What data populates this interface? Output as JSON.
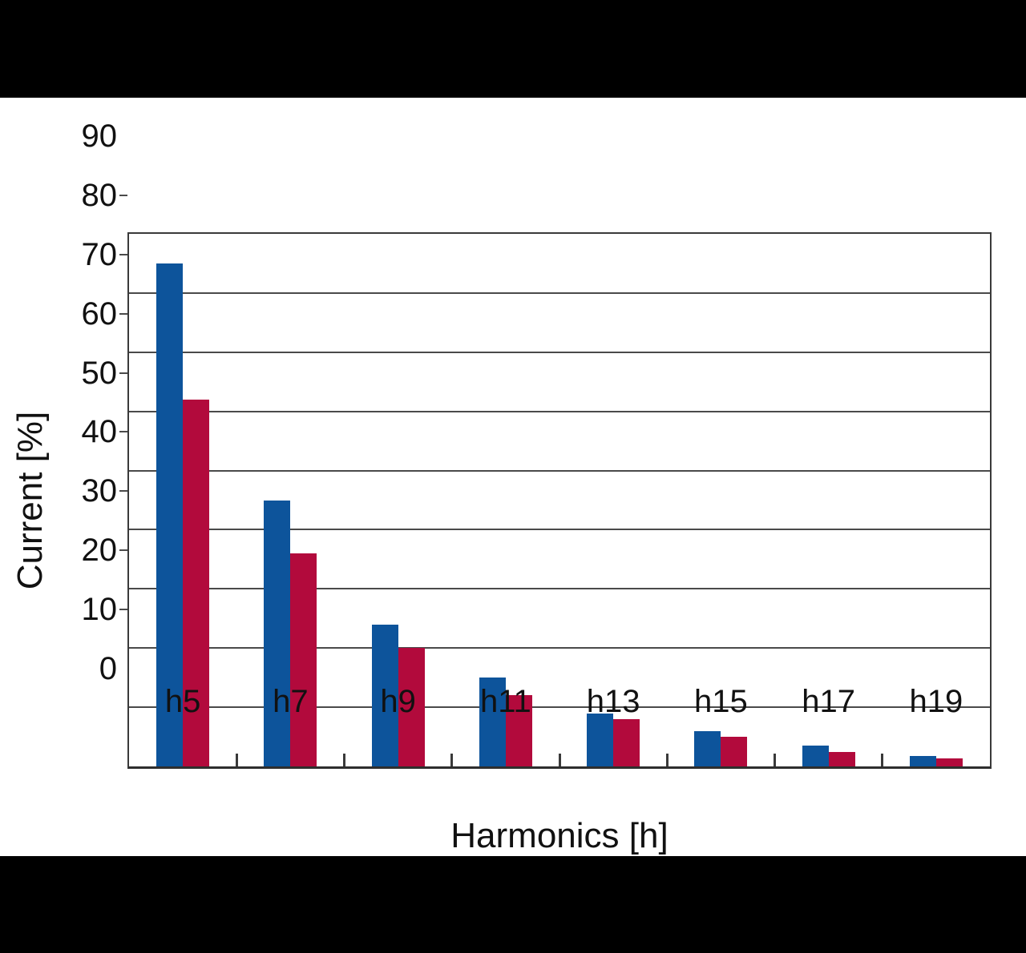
{
  "window": {
    "background": "#000000",
    "figure_background": "#ffffff"
  },
  "chart_data": {
    "type": "bar",
    "title": "",
    "xlabel": "Harmonics [h]",
    "ylabel": "Current [%]",
    "categories": [
      "h5",
      "h7",
      "h9",
      "h11",
      "h13",
      "h15",
      "h17",
      "h19"
    ],
    "series": [
      {
        "name": "series-blue",
        "color": "#0d549b",
        "values": [
          85,
          45,
          24,
          15,
          9,
          6,
          3.5,
          1.8
        ]
      },
      {
        "name": "series-red",
        "color": "#b20a3c",
        "values": [
          62,
          36,
          20,
          12,
          8,
          5,
          2.5,
          1.4
        ]
      }
    ],
    "ylim": [
      0,
      90
    ],
    "yticks": [
      0,
      10,
      20,
      30,
      40,
      50,
      60,
      70,
      80,
      90
    ],
    "grid": true,
    "gridline_color": "#4a4a4a",
    "axis_color": "#3a3a3a",
    "text_color": "#111111",
    "legend_position": "none"
  }
}
